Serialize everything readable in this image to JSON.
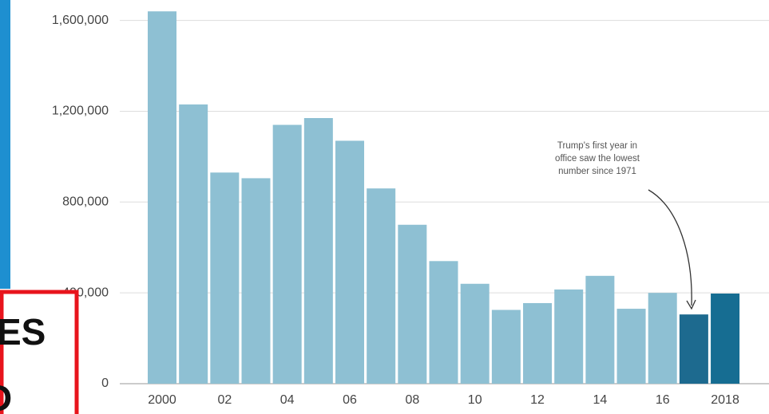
{
  "chart_data": {
    "type": "bar",
    "categories": [
      "2000",
      null,
      "02",
      null,
      "04",
      null,
      "06",
      null,
      "08",
      null,
      "10",
      null,
      "12",
      null,
      "14",
      null,
      "16",
      null,
      "2018"
    ],
    "values": [
      1640000,
      1230000,
      930000,
      905000,
      1140000,
      1170000,
      1070000,
      860000,
      700000,
      540000,
      440000,
      325000,
      355000,
      415000,
      475000,
      330000,
      400000,
      305000,
      397000
    ],
    "colors": [
      "#8ec0d3",
      "#8ec0d3",
      "#8ec0d3",
      "#8ec0d3",
      "#8ec0d3",
      "#8ec0d3",
      "#8ec0d3",
      "#8ec0d3",
      "#8ec0d3",
      "#8ec0d3",
      "#8ec0d3",
      "#8ec0d3",
      "#8ec0d3",
      "#8ec0d3",
      "#8ec0d3",
      "#8ec0d3",
      "#8ec0d3",
      "#1d6a8f",
      "#166d92"
    ],
    "ylim": [
      0,
      1690000
    ],
    "yticks": [
      0,
      {
        "value": 400000,
        "label": "400,000"
      },
      {
        "value": 800000,
        "label": "800,000"
      },
      {
        "value": 1200000,
        "label": "1,200,000"
      },
      {
        "value": 1600000,
        "label": "1,600,000"
      }
    ],
    "grid": true,
    "annotation": [
      "Trump's first year in",
      "office saw the lowest",
      "number since 1971"
    ]
  },
  "overlay_text": [
    "ES",
    "D"
  ]
}
